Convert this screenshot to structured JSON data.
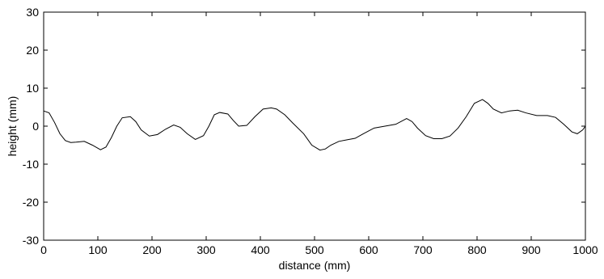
{
  "chart_data": {
    "type": "line",
    "title": "",
    "xlabel": "distance (mm)",
    "ylabel": "height (mm)",
    "xlim": [
      0,
      1000
    ],
    "ylim": [
      -30,
      30
    ],
    "xticks": [
      0,
      100,
      200,
      300,
      400,
      500,
      600,
      700,
      800,
      900,
      1000
    ],
    "yticks": [
      -30,
      -20,
      -10,
      0,
      10,
      20,
      30
    ],
    "grid": false,
    "series": [
      {
        "color": "#000000",
        "x": [
          0,
          10,
          20,
          30,
          40,
          50,
          60,
          75,
          90,
          105,
          115,
          125,
          135,
          145,
          160,
          170,
          180,
          195,
          210,
          225,
          240,
          252,
          265,
          280,
          295,
          305,
          315,
          325,
          340,
          350,
          360,
          375,
          390,
          405,
          420,
          430,
          445,
          460,
          480,
          495,
          510,
          520,
          530,
          545,
          560,
          575,
          590,
          610,
          630,
          650,
          670,
          680,
          690,
          705,
          720,
          735,
          750,
          765,
          780,
          795,
          810,
          820,
          830,
          845,
          860,
          875,
          890,
          910,
          930,
          945,
          960,
          975,
          985,
          995,
          1000
        ],
        "y": [
          4,
          3.5,
          1,
          -2,
          -3.8,
          -4.3,
          -4.2,
          -4,
          -5,
          -6.2,
          -5.5,
          -3,
          0,
          2.2,
          2.5,
          1.2,
          -1,
          -2.6,
          -2.2,
          -0.8,
          0.3,
          -0.3,
          -2,
          -3.5,
          -2.5,
          0,
          3,
          3.6,
          3.2,
          1.5,
          0,
          0.2,
          2.5,
          4.5,
          4.8,
          4.5,
          3,
          0.8,
          -2,
          -5,
          -6.3,
          -6,
          -5,
          -4,
          -3.6,
          -3.2,
          -2,
          -0.5,
          0,
          0.5,
          2,
          1.2,
          -0.5,
          -2.5,
          -3.3,
          -3.3,
          -2.6,
          -0.5,
          2.5,
          6,
          7,
          6,
          4.5,
          3.5,
          4,
          4.2,
          3.5,
          2.8,
          2.8,
          2.3,
          0.5,
          -1.5,
          -2,
          -1,
          0
        ]
      }
    ]
  }
}
